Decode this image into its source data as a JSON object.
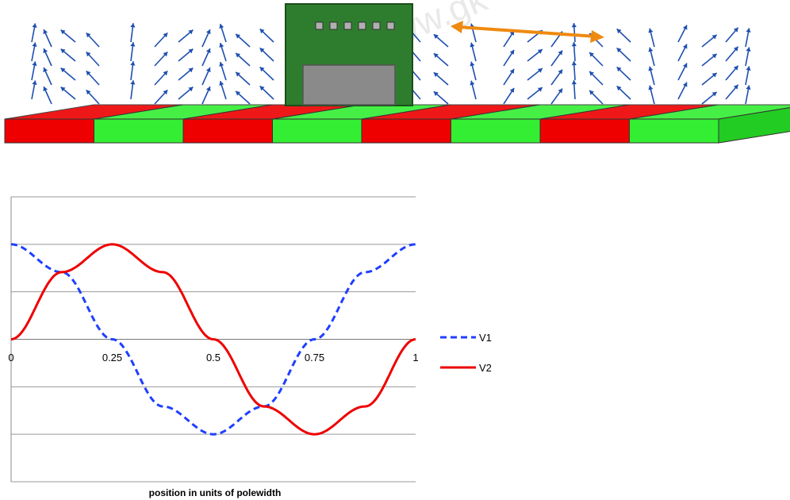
{
  "illustration": {
    "magnet_colors": [
      "#ee0000",
      "#33ee33"
    ],
    "pole_count": 8,
    "sensor_pins": 6,
    "arrow_color": "#1e4fb0",
    "pitch_arrow_color": "#ee8a10",
    "watermark": "www.gk"
  },
  "chart_data": {
    "type": "line",
    "title": "",
    "xlabel": "position in units of polewidth",
    "ylabel": "",
    "xlim": [
      0,
      1
    ],
    "ylim": [
      -1.5,
      1.5
    ],
    "x_ticks": [
      "0",
      "0.25",
      "0.5",
      "0.75",
      "1"
    ],
    "grid": true,
    "legend_position": "right",
    "series": [
      {
        "name": "V1",
        "color": "#1f3fff",
        "style": "dashed",
        "x": [
          0,
          0.125,
          0.25,
          0.375,
          0.5,
          0.625,
          0.75,
          0.875,
          1
        ],
        "y": [
          1,
          0.707,
          0,
          -0.707,
          -1,
          -0.707,
          0,
          0.707,
          1
        ]
      },
      {
        "name": "V2",
        "color": "#ee0000",
        "style": "solid",
        "x": [
          0,
          0.125,
          0.25,
          0.375,
          0.5,
          0.625,
          0.75,
          0.875,
          1
        ],
        "y": [
          0,
          0.707,
          1,
          0.707,
          0,
          -0.707,
          -1,
          -0.707,
          0
        ]
      }
    ]
  }
}
